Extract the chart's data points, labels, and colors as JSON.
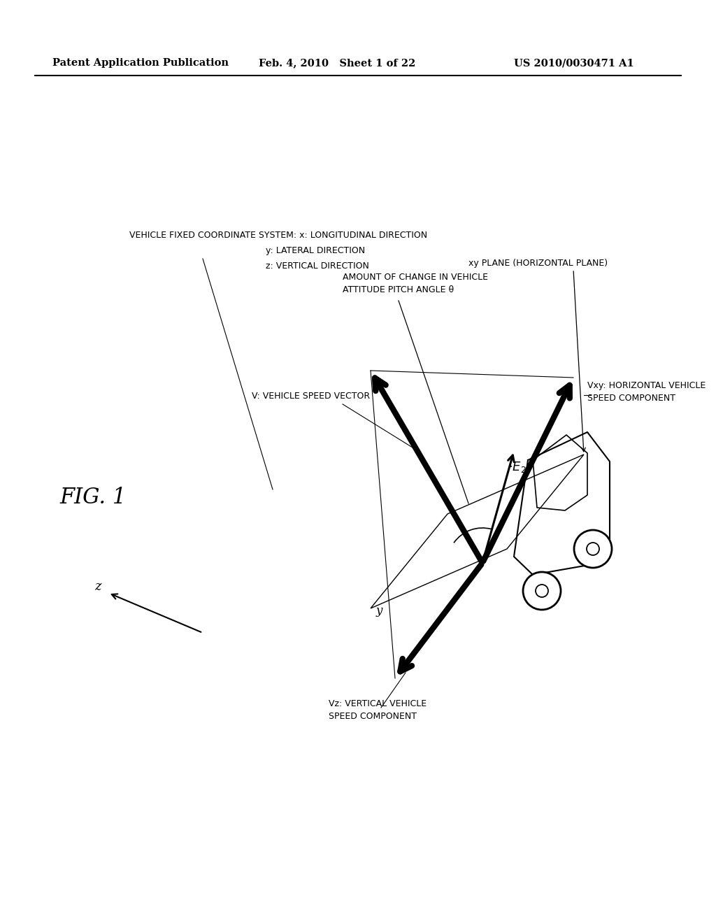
{
  "bg_color": "#ffffff",
  "header_left": "Patent Application Publication",
  "header_mid": "Feb. 4, 2010   Sheet 1 of 22",
  "header_right": "US 2010/0030471 A1",
  "fig_label": "FIG. 1",
  "coord_line0": "VEHICLE FIXED COORDINATE SYSTEM: x: LONGITUDINAL DIRECTION",
  "coord_line1": "y: LATERAL DIRECTION",
  "coord_line2": "z: VERTICAL DIRECTION",
  "label_V": "V: VEHICLE SPEED VECTOR",
  "label_Vxy_1": "Vxy: HORIZONTAL VEHICLE",
  "label_Vxy_2": "SPEED COMPONENT",
  "label_Vz_1": "Vz: VERTICAL VEHICLE",
  "label_Vz_2": "SPEED COMPONENT",
  "label_amount_1": "AMOUNT OF CHANGE IN VEHICLE",
  "label_amount_2": "ATTITUDE PITCH ANGLE θ",
  "label_xy": "xy PLANE (HORIZONTAL PLANE)",
  "z_label": "z",
  "y_label": "y"
}
